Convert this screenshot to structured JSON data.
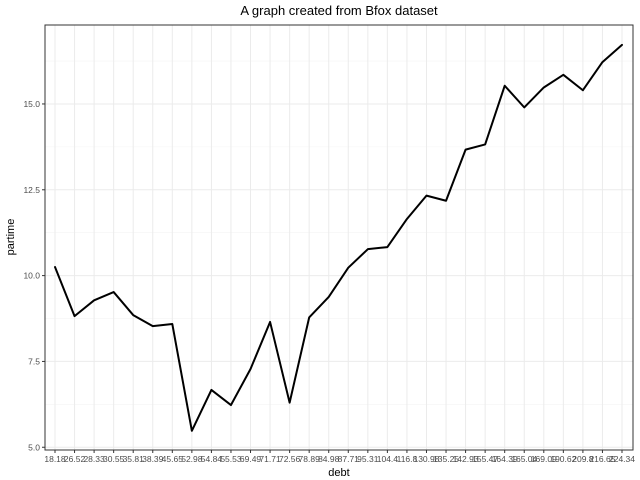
{
  "chart_data": {
    "type": "line",
    "title": "A graph created from Bfox dataset",
    "xlabel": "debt",
    "ylabel": "partime",
    "categories": [
      "18.18",
      "26.52",
      "28.33",
      "30.55",
      "35.81",
      "38.39",
      "45.65",
      "52.98",
      "54.84",
      "55.53",
      "69.49",
      "71.71",
      "72.56",
      "78.89",
      "84.98",
      "87.71",
      "95.31",
      "104.4",
      "116.8",
      "130.98",
      "135.25",
      "142.93",
      "155.47",
      "164.39",
      "165.04",
      "169.09",
      "190.62",
      "209.8",
      "216.65",
      "224.34"
    ],
    "series": [
      {
        "name": "",
        "color": "#000000",
        "values": [
          10.25,
          8.82,
          9.28,
          9.52,
          8.85,
          8.53,
          8.59,
          5.48,
          6.67,
          6.23,
          7.28,
          8.65,
          6.3,
          8.78,
          9.38,
          10.23,
          10.77,
          10.83,
          11.65,
          12.33,
          12.18,
          13.67,
          13.82,
          15.53,
          14.9,
          15.48,
          15.85,
          15.4,
          16.22,
          16.72
        ]
      }
    ],
    "yticks": [
      "5.0",
      "7.5",
      "10.0",
      "12.5",
      "15.0"
    ],
    "ytick_values": [
      5.0,
      7.5,
      10.0,
      12.5,
      15.0
    ],
    "ylim": [
      4.92,
      17.3
    ],
    "grid": true,
    "legend": "none"
  }
}
